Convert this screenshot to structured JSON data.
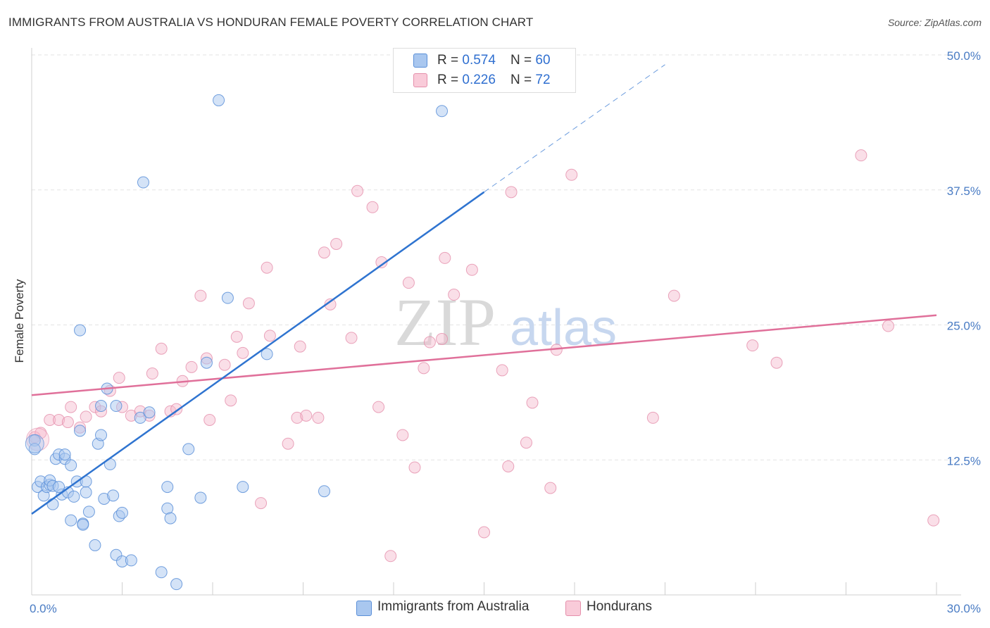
{
  "title": "IMMIGRANTS FROM AUSTRALIA VS HONDURAN FEMALE POVERTY CORRELATION CHART",
  "source": "Source: ZipAtlas.com",
  "watermark": {
    "zip": "ZIP",
    "atlas": "atlas"
  },
  "legend_top": [
    {
      "r_label": "R = ",
      "r_value": "0.574",
      "n_label": "N = ",
      "n_value": "60"
    },
    {
      "r_label": "R = ",
      "r_value": "0.226",
      "n_label": "N = ",
      "n_value": "72"
    }
  ],
  "legend_bottom": [
    {
      "label": "Immigrants from Australia"
    },
    {
      "label": "Hondurans"
    }
  ],
  "colors": {
    "blue_fill": "#a9c7ef",
    "blue_stroke": "#5a8fd8",
    "blue_line": "#2f74d0",
    "pink_fill": "#f5b8cb",
    "pink_stroke": "#e58fab",
    "pink_line": "#e0709a",
    "axis_text": "#4a7cc4",
    "grid": "#e3e3e3"
  },
  "chart_data": {
    "type": "scatter",
    "title": "IMMIGRANTS FROM AUSTRALIA VS HONDURAN FEMALE POVERTY CORRELATION CHART",
    "xlabel": "",
    "ylabel": "Female Poverty",
    "xlim": [
      0,
      30
    ],
    "ylim": [
      0,
      50
    ],
    "x_tick_labels": [
      "0.0%",
      "30.0%"
    ],
    "y_ticks": [
      12.5,
      25.0,
      37.5,
      50.0
    ],
    "y_tick_labels": [
      "12.5%",
      "25.0%",
      "37.5%",
      "50.0%"
    ],
    "grid": true,
    "series": [
      {
        "name": "Immigrants from Australia",
        "r": 0.574,
        "n": 60,
        "trend": {
          "x0": 0,
          "y0": 7.5,
          "x1": 15.0,
          "y1": 37.3,
          "dash_to_x": 21.0,
          "dash_to_y": 49.1
        },
        "points": [
          [
            0.1,
            14.3
          ],
          [
            0.1,
            13.5
          ],
          [
            0.2,
            10.0
          ],
          [
            0.3,
            10.5
          ],
          [
            0.4,
            9.2
          ],
          [
            0.5,
            10.0
          ],
          [
            0.6,
            10.2
          ],
          [
            0.6,
            10.6
          ],
          [
            0.7,
            8.4
          ],
          [
            0.7,
            10.1
          ],
          [
            0.8,
            12.6
          ],
          [
            0.9,
            13.0
          ],
          [
            1.0,
            9.3
          ],
          [
            1.1,
            12.6
          ],
          [
            1.1,
            13.0
          ],
          [
            1.2,
            9.5
          ],
          [
            1.3,
            6.9
          ],
          [
            1.3,
            12.0
          ],
          [
            1.4,
            9.1
          ],
          [
            1.5,
            10.5
          ],
          [
            1.6,
            15.2
          ],
          [
            1.7,
            6.6
          ],
          [
            1.7,
            6.5
          ],
          [
            1.8,
            9.5
          ],
          [
            1.8,
            10.5
          ],
          [
            1.9,
            7.7
          ],
          [
            2.1,
            4.6
          ],
          [
            2.2,
            14.0
          ],
          [
            2.3,
            14.8
          ],
          [
            2.3,
            17.5
          ],
          [
            2.4,
            8.9
          ],
          [
            2.5,
            19.1
          ],
          [
            2.6,
            12.1
          ],
          [
            2.8,
            3.7
          ],
          [
            2.8,
            17.5
          ],
          [
            2.9,
            7.3
          ],
          [
            3.0,
            3.1
          ],
          [
            3.0,
            7.6
          ],
          [
            3.3,
            3.2
          ],
          [
            3.6,
            16.4
          ],
          [
            3.7,
            38.2
          ],
          [
            3.9,
            16.9
          ],
          [
            4.3,
            2.1
          ],
          [
            4.5,
            10.0
          ],
          [
            4.5,
            8.0
          ],
          [
            4.6,
            7.1
          ],
          [
            4.8,
            1.0
          ],
          [
            5.2,
            13.5
          ],
          [
            5.6,
            9.0
          ],
          [
            5.8,
            21.5
          ],
          [
            6.2,
            45.8
          ],
          [
            6.5,
            27.5
          ],
          [
            7.0,
            10.0
          ],
          [
            7.8,
            22.3
          ],
          [
            9.7,
            9.6
          ],
          [
            12.4,
            48.6
          ],
          [
            13.6,
            44.8
          ],
          [
            1.6,
            24.5
          ],
          [
            0.9,
            10.0
          ],
          [
            2.7,
            9.2
          ]
        ]
      },
      {
        "name": "Hondurans",
        "r": 0.226,
        "n": 72,
        "trend": {
          "x0": 0,
          "y0": 18.5,
          "x1": 30.0,
          "y1": 25.9
        },
        "points": [
          [
            0.1,
            14.6
          ],
          [
            0.3,
            15.0
          ],
          [
            0.6,
            16.2
          ],
          [
            0.9,
            16.2
          ],
          [
            1.2,
            16.0
          ],
          [
            1.3,
            17.4
          ],
          [
            1.6,
            15.5
          ],
          [
            1.8,
            16.5
          ],
          [
            2.1,
            17.4
          ],
          [
            2.3,
            17.0
          ],
          [
            2.6,
            18.9
          ],
          [
            2.9,
            20.1
          ],
          [
            3.0,
            17.4
          ],
          [
            3.3,
            16.6
          ],
          [
            3.6,
            17.0
          ],
          [
            3.9,
            16.6
          ],
          [
            4.0,
            20.5
          ],
          [
            4.3,
            22.8
          ],
          [
            4.6,
            17.0
          ],
          [
            4.8,
            17.2
          ],
          [
            5.0,
            19.8
          ],
          [
            5.3,
            21.1
          ],
          [
            5.6,
            27.7
          ],
          [
            5.8,
            21.9
          ],
          [
            5.9,
            16.2
          ],
          [
            6.4,
            21.3
          ],
          [
            6.6,
            18.0
          ],
          [
            6.8,
            23.9
          ],
          [
            7.0,
            22.4
          ],
          [
            7.2,
            27.0
          ],
          [
            7.6,
            8.5
          ],
          [
            7.8,
            30.3
          ],
          [
            7.9,
            24.0
          ],
          [
            8.5,
            14.0
          ],
          [
            8.8,
            16.4
          ],
          [
            8.9,
            23.0
          ],
          [
            9.1,
            16.6
          ],
          [
            9.5,
            16.4
          ],
          [
            9.7,
            31.7
          ],
          [
            9.9,
            26.9
          ],
          [
            10.1,
            32.5
          ],
          [
            10.6,
            23.8
          ],
          [
            10.8,
            37.4
          ],
          [
            11.3,
            35.9
          ],
          [
            11.5,
            17.4
          ],
          [
            11.6,
            30.8
          ],
          [
            11.9,
            3.6
          ],
          [
            12.3,
            14.8
          ],
          [
            12.5,
            28.9
          ],
          [
            12.7,
            11.8
          ],
          [
            13.0,
            21.0
          ],
          [
            13.2,
            23.4
          ],
          [
            13.6,
            23.7
          ],
          [
            13.7,
            31.2
          ],
          [
            14.0,
            27.8
          ],
          [
            14.6,
            30.1
          ],
          [
            15.0,
            5.8
          ],
          [
            15.6,
            20.8
          ],
          [
            15.8,
            11.9
          ],
          [
            15.9,
            37.3
          ],
          [
            16.4,
            14.1
          ],
          [
            16.6,
            17.8
          ],
          [
            17.2,
            9.9
          ],
          [
            17.4,
            22.7
          ],
          [
            17.9,
            38.9
          ],
          [
            20.6,
            16.4
          ],
          [
            21.3,
            27.7
          ],
          [
            23.9,
            23.1
          ],
          [
            24.7,
            21.5
          ],
          [
            27.5,
            40.7
          ],
          [
            28.4,
            24.9
          ],
          [
            29.9,
            6.9
          ]
        ]
      }
    ]
  }
}
